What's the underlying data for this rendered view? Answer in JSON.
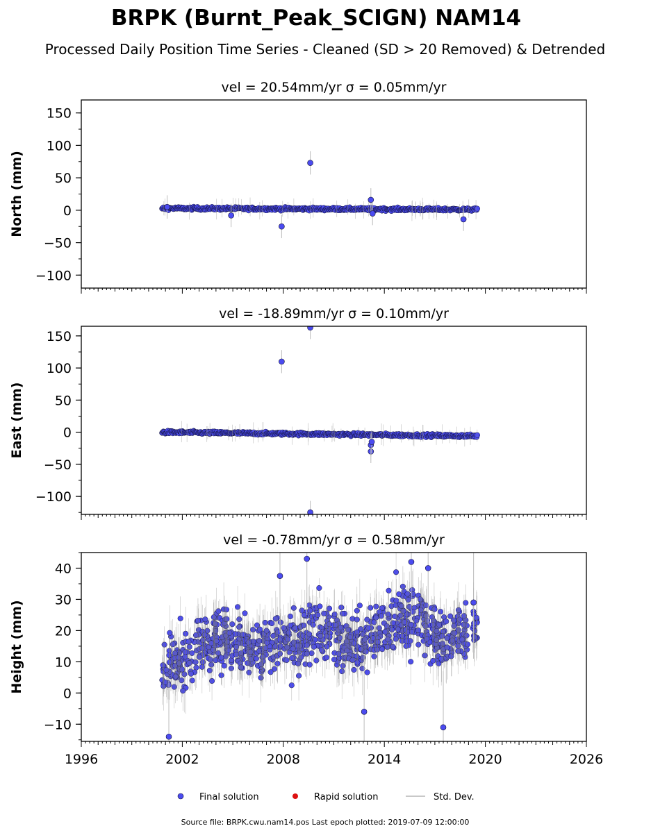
{
  "figure": {
    "title": "BRPK (Burnt_Peak_SCIGN) NAM14",
    "subtitle": "Processed Daily Position Time Series - Cleaned (SD > 20 Removed) & Detrended",
    "source_note": "Source file: BRPK.cwu.nam14.pos  Last epoch plotted: 2019-07-09 12:00:00"
  },
  "legend": {
    "final": "Final solution",
    "rapid": "Rapid solution",
    "std": "Std. Dev."
  },
  "colors": {
    "final": "#4b4bf0",
    "final_edge": "#111133",
    "rapid": "#dd1111",
    "std": "#999999"
  },
  "chart_data": [
    {
      "type": "scatter",
      "panel_title": "vel = 20.54mm/yr   σ = 0.05mm/yr",
      "ylabel": "North (mm)",
      "xlim": [
        1996,
        2026
      ],
      "ylim": [
        -120,
        170
      ],
      "yticks": [
        -100,
        -50,
        0,
        50,
        100,
        150
      ],
      "ytick_labels": [
        "−100",
        "−50",
        "0",
        "50",
        "100",
        "150"
      ],
      "xticks": [
        1996,
        2002,
        2008,
        2014,
        2020,
        2026
      ],
      "xtick_labels": [],
      "data_span": [
        2000.8,
        2019.52
      ],
      "series": [
        {
          "name": "Final solution",
          "x": [
            2001.1,
            2004.9,
            2007.9,
            2009.6,
            2013.2,
            2013.3,
            2018.7
          ],
          "y": [
            5,
            -8,
            -25,
            73,
            16,
            -5,
            -14
          ]
        }
      ],
      "trend": {
        "x": [
          2000.8,
          2019.52
        ],
        "y": [
          3,
          1
        ]
      }
    },
    {
      "type": "scatter",
      "panel_title": "vel = -18.89mm/yr   σ = 0.10mm/yr",
      "ylabel": "East (mm)",
      "xlim": [
        1996,
        2026
      ],
      "ylim": [
        -128,
        165
      ],
      "yticks": [
        -100,
        -50,
        0,
        50,
        100,
        150
      ],
      "ytick_labels": [
        "−100",
        "−50",
        "0",
        "50",
        "100",
        "150"
      ],
      "xticks": [
        1996,
        2002,
        2008,
        2014,
        2020,
        2026
      ],
      "xtick_labels": [],
      "data_span": [
        2000.8,
        2019.52
      ],
      "series": [
        {
          "name": "Final solution",
          "x": [
            2007.9,
            2009.6,
            2009.6,
            2013.2,
            2013.2,
            2013.25
          ],
          "y": [
            110,
            163,
            -125,
            -30,
            -20,
            -15
          ]
        }
      ],
      "trend": {
        "x": [
          2000.8,
          2019.52
        ],
        "y": [
          0,
          -6
        ]
      }
    },
    {
      "type": "scatter",
      "panel_title": "vel = -0.78mm/yr   σ = 0.58mm/yr",
      "ylabel": "Height (mm)",
      "xlim": [
        1996,
        2026
      ],
      "ylim": [
        -15.5,
        45
      ],
      "yticks": [
        -10,
        0,
        10,
        20,
        30,
        40
      ],
      "ytick_labels": [
        "−10",
        "0",
        "10",
        "20",
        "30",
        "40"
      ],
      "xticks": [
        1996,
        2002,
        2008,
        2014,
        2020,
        2026
      ],
      "xtick_labels": [
        "1996",
        "2002",
        "2008",
        "2014",
        "2020",
        "2026"
      ],
      "data_span": [
        2000.8,
        2019.52
      ],
      "series": [
        {
          "name": "Final solution",
          "x": [
            2001.2,
            2007.8,
            2009.4,
            2012.8,
            2015.6,
            2016.6,
            2017.5,
            2019.3
          ],
          "y": [
            -14,
            37.5,
            43,
            -6,
            42,
            40,
            -11,
            29
          ]
        }
      ],
      "envelope": {
        "x": [
          2000.8,
          2001.5,
          2002.5,
          2003.5,
          2004.5,
          2005.5,
          2006.5,
          2007.5,
          2008.5,
          2009.5,
          2010.5,
          2011.5,
          2012.5,
          2013.5,
          2014.5,
          2015.5,
          2016.5,
          2017.5,
          2018.5,
          2019.5
        ],
        "mean": [
          8,
          10,
          13,
          16,
          18,
          16,
          14,
          15,
          17,
          19,
          20,
          18,
          16,
          18,
          22,
          24,
          21,
          17,
          19,
          21
        ],
        "spread": [
          10,
          11,
          12,
          12,
          12,
          12,
          11,
          11,
          12,
          13,
          13,
          12,
          12,
          13,
          14,
          14,
          14,
          13,
          12,
          9
        ]
      }
    }
  ]
}
